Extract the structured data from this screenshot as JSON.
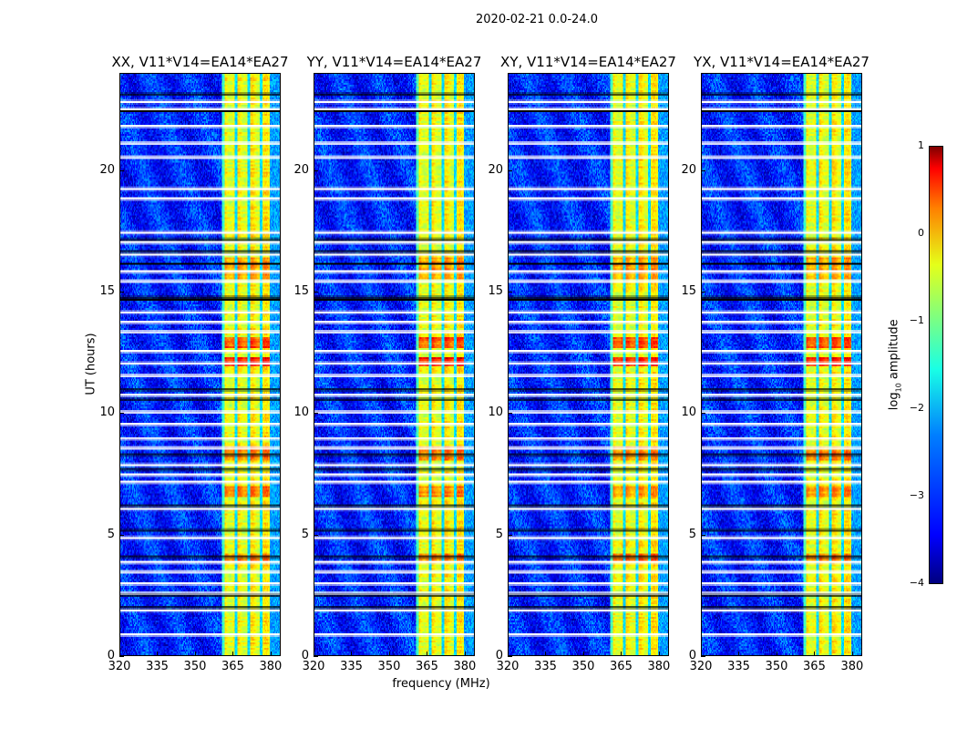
{
  "figure": {
    "suptitle": "2020-02-21 0.0-24.0"
  },
  "chart_data": {
    "type": "heatmap",
    "xlabel": "frequency (MHz)",
    "ylabel": "UT (hours)",
    "xlim": [
      320,
      384
    ],
    "ylim": [
      0,
      24
    ],
    "xticks": [
      "320",
      "335",
      "350",
      "365",
      "380"
    ],
    "xtick_values": [
      320,
      335,
      350,
      365,
      380
    ],
    "yticks": [
      "0",
      "5",
      "10",
      "15",
      "20"
    ],
    "ytick_values": [
      0,
      5,
      10,
      15,
      20
    ],
    "colormap": "jet",
    "colorbar": {
      "label_main": "log",
      "label_sub": "10",
      "label_rest": " amplitude",
      "range": [
        -4,
        1
      ],
      "ticks": [
        "1",
        "0",
        "−1",
        "−2",
        "−3",
        "−4"
      ],
      "tick_values": [
        1,
        0,
        -1,
        -2,
        -3,
        -4
      ]
    },
    "background_log_amplitude": -3.2,
    "rfi_band_mhz": [
      362,
      380
    ],
    "rfi_band_log_amplitude": -0.9,
    "rfi_subband_dividers_mhz": [
      366.5,
      371.5,
      376.5
    ],
    "flagged_hours": [
      22.9,
      22.6,
      21.9,
      21.2,
      20.6,
      19.3,
      18.9,
      17.5,
      17.1,
      16.6,
      15.9,
      15.5,
      14.2,
      13.8,
      13.4,
      12.6,
      12.1,
      11.6,
      10.8,
      10.1,
      9.6,
      9.0,
      8.6,
      7.9,
      7.5,
      7.2,
      6.1,
      4.9,
      3.9,
      3.5,
      3.0,
      2.6,
      1.9,
      0.9
    ],
    "black_line_hours": [
      23.2,
      22.5,
      17.2,
      16.7,
      16.2,
      14.8,
      14.7,
      11.0,
      10.6,
      8.3,
      7.7,
      6.2,
      5.2,
      4.1,
      2.5,
      2.0
    ],
    "hot_hours": [
      [
        11.9,
        12.3,
        0.3
      ],
      [
        12.7,
        13.1,
        0.0
      ],
      [
        3.8,
        4.2,
        -0.2
      ],
      [
        6.5,
        7.0,
        -0.3
      ],
      [
        15.5,
        16.4,
        -0.4
      ],
      [
        8.0,
        8.6,
        -0.3
      ]
    ],
    "panels": [
      {
        "title": "XX, V11*V14=EA14*EA27",
        "seed": 1
      },
      {
        "title": "YY, V11*V14=EA14*EA27",
        "seed": 2
      },
      {
        "title": "XY, V11*V14=EA14*EA27",
        "seed": 3
      },
      {
        "title": "YX, V11*V14=EA14*EA27",
        "seed": 4
      }
    ]
  }
}
